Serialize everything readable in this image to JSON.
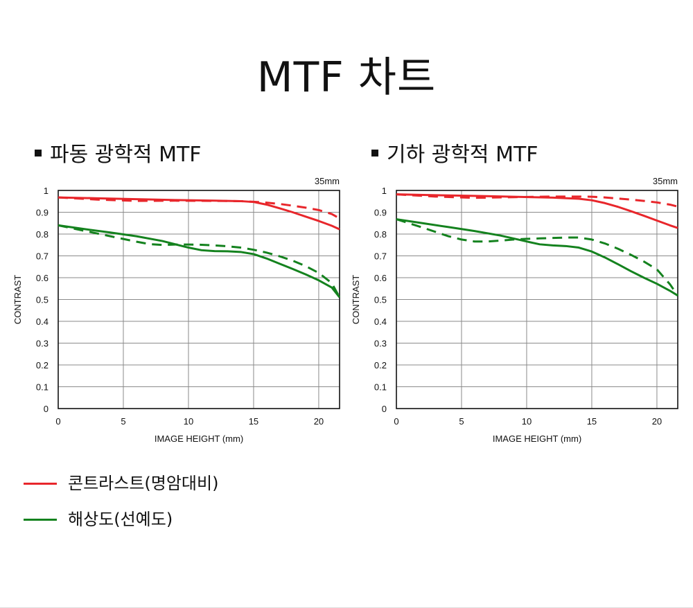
{
  "page": {
    "title": "MTF 차트"
  },
  "colors": {
    "contrast": "#e8262b",
    "resolution": "#14821e",
    "grid": "#8a8a8a",
    "axis": "#111111"
  },
  "legend": {
    "items": [
      {
        "label": "콘트라스트(명암대비)",
        "color": "#e8262b"
      },
      {
        "label": "해상도(선예도)",
        "color": "#14821e"
      }
    ]
  },
  "chart_data": [
    {
      "type": "line",
      "title": "파동 광학적 MTF",
      "subtitle": "35mm",
      "xlabel": "IMAGE HEIGHT (mm)",
      "ylabel": "CONTRAST",
      "xlim": [
        0,
        21.6
      ],
      "ylim": [
        0,
        1
      ],
      "xticks": [
        "0",
        "5",
        "10",
        "15",
        "20"
      ],
      "xtick_values": [
        0,
        5,
        10,
        15,
        20
      ],
      "yticks": [
        "0",
        "0.1",
        "0.2",
        "0.3",
        "0.4",
        "0.5",
        "0.6",
        "0.7",
        "0.8",
        "0.9",
        "1"
      ],
      "ytick_values": [
        0,
        0.1,
        0.2,
        0.3,
        0.4,
        0.5,
        0.6,
        0.7,
        0.8,
        0.9,
        1
      ],
      "grid": true,
      "series": [
        {
          "group": "contrast",
          "style": "solid",
          "x": [
            0,
            3,
            6,
            9,
            12,
            14,
            15,
            16,
            17,
            18,
            19,
            20,
            21,
            21.6
          ],
          "y": [
            0.968,
            0.964,
            0.96,
            0.956,
            0.953,
            0.951,
            0.947,
            0.935,
            0.918,
            0.9,
            0.88,
            0.86,
            0.838,
            0.822
          ]
        },
        {
          "group": "contrast",
          "style": "dashed",
          "x": [
            0,
            3,
            6,
            9,
            12,
            14,
            15,
            16,
            17,
            18,
            19,
            20,
            21,
            21.6
          ],
          "y": [
            0.968,
            0.958,
            0.952,
            0.953,
            0.952,
            0.951,
            0.948,
            0.944,
            0.938,
            0.93,
            0.921,
            0.91,
            0.892,
            0.872
          ]
        },
        {
          "group": "resolution",
          "style": "solid",
          "x": [
            0,
            2,
            4,
            6,
            8,
            9,
            10,
            11,
            12,
            13,
            14,
            15,
            16,
            17,
            18,
            19,
            20,
            21,
            21.6
          ],
          "y": [
            0.84,
            0.823,
            0.807,
            0.79,
            0.768,
            0.753,
            0.738,
            0.726,
            0.722,
            0.721,
            0.718,
            0.708,
            0.688,
            0.664,
            0.64,
            0.615,
            0.588,
            0.555,
            0.51
          ]
        },
        {
          "group": "resolution",
          "style": "dashed",
          "x": [
            0,
            2,
            4,
            6,
            7,
            8,
            9,
            10,
            11,
            12,
            13,
            14,
            15,
            16,
            17,
            18,
            19,
            20,
            21,
            21.6
          ],
          "y": [
            0.84,
            0.815,
            0.79,
            0.765,
            0.754,
            0.75,
            0.752,
            0.752,
            0.751,
            0.748,
            0.744,
            0.738,
            0.728,
            0.715,
            0.698,
            0.678,
            0.653,
            0.622,
            0.575,
            0.51
          ]
        }
      ]
    },
    {
      "type": "line",
      "title": "기하 광학적 MTF",
      "subtitle": "35mm",
      "xlabel": "IMAGE HEIGHT (mm)",
      "ylabel": "CONTRAST",
      "xlim": [
        0,
        21.6
      ],
      "ylim": [
        0,
        1
      ],
      "xticks": [
        "0",
        "5",
        "10",
        "15",
        "20"
      ],
      "xtick_values": [
        0,
        5,
        10,
        15,
        20
      ],
      "yticks": [
        "0",
        "0.1",
        "0.2",
        "0.3",
        "0.4",
        "0.5",
        "0.6",
        "0.7",
        "0.8",
        "0.9",
        "1"
      ],
      "ytick_values": [
        0,
        0.1,
        0.2,
        0.3,
        0.4,
        0.5,
        0.6,
        0.7,
        0.8,
        0.9,
        1
      ],
      "grid": true,
      "series": [
        {
          "group": "contrast",
          "style": "solid",
          "x": [
            0,
            3,
            6,
            9,
            12,
            14,
            15,
            16,
            17,
            18,
            19,
            20,
            21,
            21.6
          ],
          "y": [
            0.982,
            0.978,
            0.975,
            0.971,
            0.967,
            0.962,
            0.955,
            0.942,
            0.925,
            0.905,
            0.884,
            0.862,
            0.84,
            0.828
          ]
        },
        {
          "group": "contrast",
          "style": "dashed",
          "x": [
            0,
            3,
            6,
            9,
            12,
            14,
            15,
            16,
            17,
            18,
            19,
            20,
            21,
            21.6
          ],
          "y": [
            0.982,
            0.972,
            0.966,
            0.969,
            0.972,
            0.972,
            0.971,
            0.968,
            0.963,
            0.958,
            0.952,
            0.945,
            0.935,
            0.926
          ]
        },
        {
          "group": "resolution",
          "style": "solid",
          "x": [
            0,
            2,
            4,
            6,
            8,
            10,
            11,
            12,
            13,
            14,
            15,
            16,
            17,
            18,
            19,
            20,
            21,
            21.6
          ],
          "y": [
            0.868,
            0.85,
            0.832,
            0.814,
            0.793,
            0.766,
            0.753,
            0.748,
            0.745,
            0.738,
            0.72,
            0.693,
            0.662,
            0.63,
            0.6,
            0.572,
            0.54,
            0.518
          ]
        },
        {
          "group": "resolution",
          "style": "dashed",
          "x": [
            0,
            2,
            4,
            5,
            6,
            7,
            8,
            9,
            10,
            11,
            12,
            13,
            14,
            15,
            16,
            17,
            18,
            19,
            20,
            21,
            21.6
          ],
          "y": [
            0.868,
            0.83,
            0.79,
            0.775,
            0.766,
            0.766,
            0.77,
            0.775,
            0.778,
            0.78,
            0.782,
            0.784,
            0.784,
            0.775,
            0.757,
            0.733,
            0.705,
            0.674,
            0.638,
            0.57,
            0.518
          ]
        }
      ]
    }
  ]
}
